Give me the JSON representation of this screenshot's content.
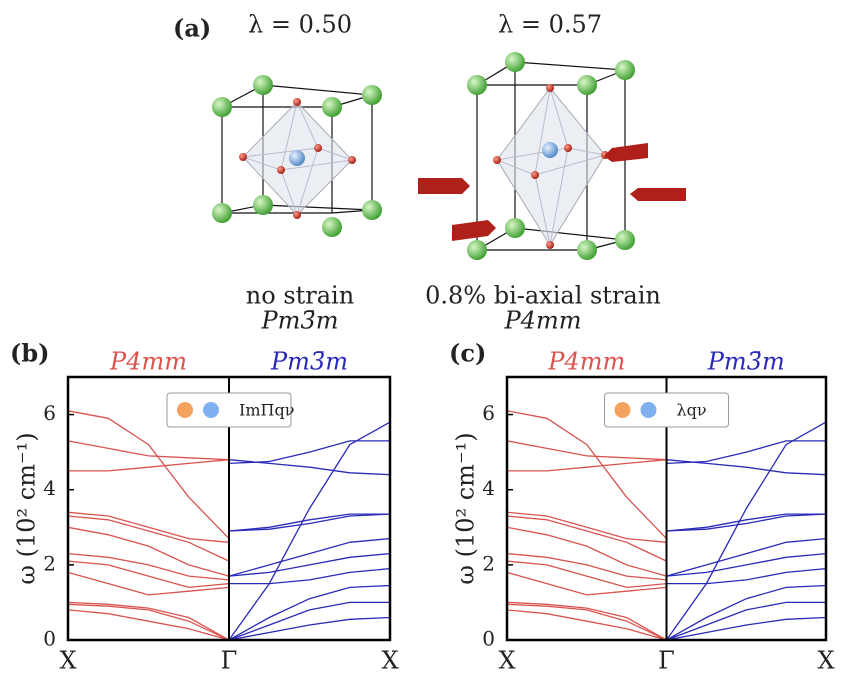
{
  "panel_a": {
    "label": "(a)",
    "structures": [
      {
        "lambda": "λ = 0.50",
        "strain": "no strain",
        "group": "Pm3̄m"
      },
      {
        "lambda": "λ = 0.57",
        "strain": "0.8% bi-axial strain",
        "group": "P4mm"
      }
    ]
  },
  "chart_data": [
    {
      "type": "line",
      "label": "(b)",
      "annotations": [
        {
          "text": "P4mm",
          "color": "#d9534f"
        },
        {
          "text": "Pm3̄m",
          "color": "#2a2ab8"
        }
      ],
      "y_label": "ω (10² cm⁻¹)",
      "legend": [
        "ImΠqν"
      ],
      "legend_colors": [
        "#f4a25e",
        "#7fb0f0"
      ],
      "x": [
        0,
        0.25,
        0.5,
        0.75,
        1,
        1.25,
        1.5,
        1.75,
        2
      ],
      "xlim": [
        0,
        2
      ],
      "xticks": [
        {
          "value": 0,
          "label": "X"
        },
        {
          "value": 1,
          "label": "Γ"
        },
        {
          "value": 2,
          "label": "X"
        }
      ],
      "ylim": [
        0,
        7
      ],
      "yticks": [
        0,
        2,
        4,
        6
      ],
      "series": [
        {
          "color": "#d9534f",
          "values": [
            6.1,
            5.9,
            5.2,
            3.8,
            2.7,
            null,
            null,
            null,
            null
          ]
        },
        {
          "color": "#d9534f",
          "values": [
            5.3,
            5.1,
            4.9,
            4.85,
            4.8,
            null,
            null,
            null,
            null
          ]
        },
        {
          "color": "#d9534f",
          "values": [
            4.5,
            4.5,
            4.6,
            4.7,
            4.8,
            null,
            null,
            null,
            null
          ]
        },
        {
          "color": "#d9534f",
          "values": [
            3.4,
            3.3,
            3.0,
            2.7,
            2.6,
            null,
            null,
            null,
            null
          ]
        },
        {
          "color": "#d9534f",
          "values": [
            3.3,
            3.2,
            2.9,
            2.6,
            2.1,
            null,
            null,
            null,
            null
          ]
        },
        {
          "color": "#d9534f",
          "values": [
            3.0,
            2.8,
            2.5,
            2.0,
            1.7,
            null,
            null,
            null,
            null
          ]
        },
        {
          "color": "#d9534f",
          "values": [
            2.3,
            2.2,
            2.0,
            1.7,
            1.6,
            null,
            null,
            null,
            null
          ]
        },
        {
          "color": "#d9534f",
          "values": [
            2.1,
            2.0,
            1.7,
            1.4,
            1.5,
            null,
            null,
            null,
            null
          ]
        },
        {
          "color": "#d9534f",
          "values": [
            1.8,
            1.5,
            1.2,
            1.3,
            1.4,
            null,
            null,
            null,
            null
          ]
        },
        {
          "color": "#d9534f",
          "values": [
            1.0,
            0.95,
            0.85,
            0.6,
            0,
            null,
            null,
            null,
            null
          ]
        },
        {
          "color": "#d9534f",
          "values": [
            0.95,
            0.9,
            0.8,
            0.5,
            0,
            null,
            null,
            null,
            null
          ]
        },
        {
          "color": "#d9534f",
          "values": [
            0.8,
            0.7,
            0.5,
            0.3,
            0,
            null,
            null,
            null,
            null
          ]
        },
        {
          "color": "#2a2ab8",
          "values": [
            null,
            null,
            null,
            null,
            4.7,
            4.75,
            5.0,
            5.3,
            5.3
          ]
        },
        {
          "color": "#2a2ab8",
          "values": [
            null,
            null,
            null,
            null,
            4.8,
            4.7,
            4.6,
            4.45,
            4.4
          ]
        },
        {
          "color": "#2a2ab8",
          "values": [
            null,
            null,
            null,
            null,
            0,
            1.5,
            3.5,
            5.2,
            5.8
          ]
        },
        {
          "color": "#2a2ab8",
          "values": [
            null,
            null,
            null,
            null,
            2.9,
            3.0,
            3.2,
            3.35,
            3.35
          ]
        },
        {
          "color": "#2a2ab8",
          "values": [
            null,
            null,
            null,
            null,
            2.9,
            2.95,
            3.1,
            3.3,
            3.35
          ]
        },
        {
          "color": "#2a2ab8",
          "values": [
            null,
            null,
            null,
            null,
            1.7,
            2.0,
            2.3,
            2.6,
            2.7
          ]
        },
        {
          "color": "#2a2ab8",
          "values": [
            null,
            null,
            null,
            null,
            1.7,
            1.8,
            2.0,
            2.2,
            2.3
          ]
        },
        {
          "color": "#2a2ab8",
          "values": [
            null,
            null,
            null,
            null,
            1.5,
            1.5,
            1.6,
            1.8,
            1.9
          ]
        },
        {
          "color": "#2a2ab8",
          "values": [
            null,
            null,
            null,
            null,
            0,
            0.6,
            1.1,
            1.4,
            1.45
          ]
        },
        {
          "color": "#2a2ab8",
          "values": [
            null,
            null,
            null,
            null,
            0,
            0.4,
            0.8,
            1.0,
            1.0
          ]
        },
        {
          "color": "#2a2ab8",
          "values": [
            null,
            null,
            null,
            null,
            0,
            0.2,
            0.4,
            0.55,
            0.6
          ]
        }
      ]
    },
    {
      "type": "line",
      "label": "(c)",
      "annotations": [
        {
          "text": "P4mm",
          "color": "#d9534f"
        },
        {
          "text": "Pm3̄m",
          "color": "#2a2ab8"
        }
      ],
      "y_label": "ω (10² cm⁻¹)",
      "legend": [
        "λqν"
      ],
      "legend_colors": [
        "#f4a25e",
        "#7fb0f0"
      ],
      "x": [
        0,
        0.25,
        0.5,
        0.75,
        1,
        1.25,
        1.5,
        1.75,
        2
      ],
      "xlim": [
        0,
        2
      ],
      "xticks": [
        {
          "value": 0,
          "label": "X"
        },
        {
          "value": 1,
          "label": "Γ"
        },
        {
          "value": 2,
          "label": "X"
        }
      ],
      "ylim": [
        0,
        7
      ],
      "yticks": [
        0,
        2,
        4,
        6
      ],
      "series": [
        {
          "color": "#d9534f",
          "values": [
            6.1,
            5.9,
            5.2,
            3.8,
            2.7,
            null,
            null,
            null,
            null
          ]
        },
        {
          "color": "#d9534f",
          "values": [
            5.3,
            5.1,
            4.9,
            4.85,
            4.8,
            null,
            null,
            null,
            null
          ]
        },
        {
          "color": "#d9534f",
          "values": [
            4.5,
            4.5,
            4.6,
            4.7,
            4.8,
            null,
            null,
            null,
            null
          ]
        },
        {
          "color": "#d9534f",
          "values": [
            3.4,
            3.3,
            3.0,
            2.7,
            2.6,
            null,
            null,
            null,
            null
          ]
        },
        {
          "color": "#d9534f",
          "values": [
            3.3,
            3.2,
            2.9,
            2.6,
            2.1,
            null,
            null,
            null,
            null
          ]
        },
        {
          "color": "#d9534f",
          "values": [
            3.0,
            2.8,
            2.5,
            2.0,
            1.7,
            null,
            null,
            null,
            null
          ]
        },
        {
          "color": "#d9534f",
          "values": [
            2.3,
            2.2,
            2.0,
            1.7,
            1.6,
            null,
            null,
            null,
            null
          ]
        },
        {
          "color": "#d9534f",
          "values": [
            2.1,
            2.0,
            1.7,
            1.4,
            1.5,
            null,
            null,
            null,
            null
          ]
        },
        {
          "color": "#d9534f",
          "values": [
            1.8,
            1.5,
            1.2,
            1.3,
            1.4,
            null,
            null,
            null,
            null
          ]
        },
        {
          "color": "#d9534f",
          "values": [
            1.0,
            0.95,
            0.85,
            0.6,
            0,
            null,
            null,
            null,
            null
          ]
        },
        {
          "color": "#d9534f",
          "values": [
            0.95,
            0.9,
            0.8,
            0.5,
            0,
            null,
            null,
            null,
            null
          ]
        },
        {
          "color": "#d9534f",
          "values": [
            0.8,
            0.7,
            0.5,
            0.3,
            0,
            null,
            null,
            null,
            null
          ]
        },
        {
          "color": "#2a2ab8",
          "values": [
            null,
            null,
            null,
            null,
            4.7,
            4.75,
            5.0,
            5.3,
            5.3
          ]
        },
        {
          "color": "#2a2ab8",
          "values": [
            null,
            null,
            null,
            null,
            4.8,
            4.7,
            4.6,
            4.45,
            4.4
          ]
        },
        {
          "color": "#2a2ab8",
          "values": [
            null,
            null,
            null,
            null,
            0,
            1.5,
            3.5,
            5.2,
            5.8
          ]
        },
        {
          "color": "#2a2ab8",
          "values": [
            null,
            null,
            null,
            null,
            2.9,
            3.0,
            3.2,
            3.35,
            3.35
          ]
        },
        {
          "color": "#2a2ab8",
          "values": [
            null,
            null,
            null,
            null,
            2.9,
            2.95,
            3.1,
            3.3,
            3.35
          ]
        },
        {
          "color": "#2a2ab8",
          "values": [
            null,
            null,
            null,
            null,
            1.7,
            2.0,
            2.3,
            2.6,
            2.7
          ]
        },
        {
          "color": "#2a2ab8",
          "values": [
            null,
            null,
            null,
            null,
            1.7,
            1.8,
            2.0,
            2.2,
            2.3
          ]
        },
        {
          "color": "#2a2ab8",
          "values": [
            null,
            null,
            null,
            null,
            1.5,
            1.5,
            1.6,
            1.8,
            1.9
          ]
        },
        {
          "color": "#2a2ab8",
          "values": [
            null,
            null,
            null,
            null,
            0,
            0.6,
            1.1,
            1.4,
            1.45
          ]
        },
        {
          "color": "#2a2ab8",
          "values": [
            null,
            null,
            null,
            null,
            0,
            0.4,
            0.8,
            1.0,
            1.0
          ]
        },
        {
          "color": "#2a2ab8",
          "values": [
            null,
            null,
            null,
            null,
            0,
            0.2,
            0.4,
            0.55,
            0.6
          ]
        }
      ]
    }
  ]
}
